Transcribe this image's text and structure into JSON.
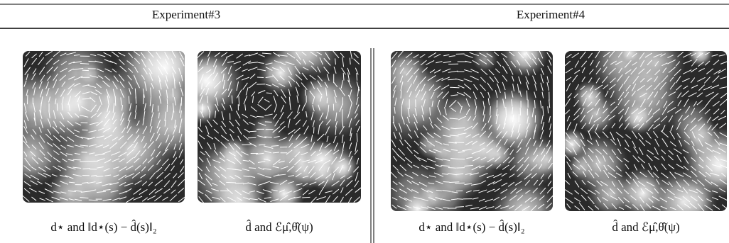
{
  "columns": [
    {
      "header": "Experiment#3",
      "panels": [
        {
          "caption": "d⋆ and ‖d⋆(s) − d̂(s)‖₂"
        },
        {
          "caption": "d̂ and ℰμ̂,θ̂(ψ)"
        }
      ]
    },
    {
      "header": "Experiment#4",
      "panels": [
        {
          "caption": "d⋆ and ‖d⋆(s) − d̂(s)‖₂"
        },
        {
          "caption": "d̂ and ℰμ̂,θ̂(ψ)"
        }
      ]
    }
  ]
}
